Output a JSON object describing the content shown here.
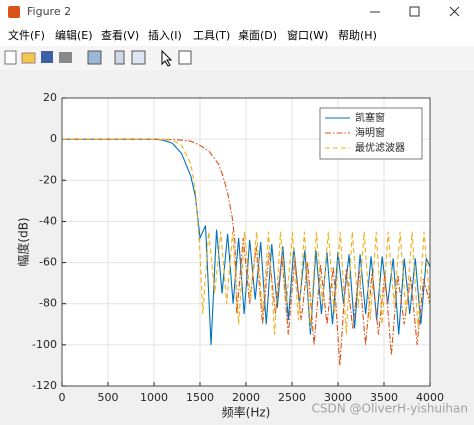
{
  "window": {
    "title": "Figure 2",
    "menu": [
      "文件(F)",
      "编辑(E)",
      "查看(V)",
      "插入(I)",
      "工具(T)",
      "桌面(D)",
      "窗口(W)",
      "帮助(H)"
    ]
  },
  "watermark": "CSDN @OliverH-yishuihan",
  "chart_data": {
    "type": "line",
    "xlabel": "频率(Hz)",
    "ylabel": "幅度(dB)",
    "xlim": [
      0,
      4000
    ],
    "xticks": [
      0,
      500,
      1000,
      1500,
      2000,
      2500,
      3000,
      3500,
      4000
    ],
    "ylim": [
      -120,
      20
    ],
    "yticks": [
      -120,
      -100,
      -80,
      -60,
      -40,
      -20,
      0,
      20
    ],
    "grid": true,
    "legend": "northeast",
    "series": [
      {
        "name": "凯塞窗",
        "color": "#0072bd",
        "linestyle": "-",
        "x": [
          0,
          500,
          1000,
          1100,
          1200,
          1300,
          1400,
          1450,
          1500,
          1560,
          1620,
          1680,
          1740,
          1800,
          1860,
          1920,
          1980,
          2040,
          2100,
          2160,
          2220,
          2280,
          2340,
          2400,
          2460,
          2520,
          2580,
          2640,
          2700,
          2760,
          2820,
          2880,
          2940,
          3000,
          3060,
          3120,
          3180,
          3240,
          3300,
          3360,
          3420,
          3480,
          3540,
          3600,
          3660,
          3720,
          3780,
          3840,
          3900,
          3960,
          4000
        ],
        "values": [
          0,
          0,
          0,
          -0.5,
          -2,
          -7,
          -18,
          -28,
          -48,
          -42,
          -100,
          -44,
          -75,
          -46,
          -80,
          -48,
          -85,
          -49,
          -78,
          -50,
          -90,
          -51,
          -82,
          -52,
          -88,
          -53,
          -80,
          -54,
          -95,
          -54,
          -85,
          -55,
          -90,
          -55,
          -80,
          -56,
          -92,
          -56,
          -85,
          -57,
          -88,
          -57,
          -80,
          -58,
          -95,
          -58,
          -85,
          -58,
          -90,
          -58,
          -62
        ]
      },
      {
        "name": "海明窗",
        "color": "#d95319",
        "linestyle": "-.",
        "x": [
          0,
          500,
          1000,
          1200,
          1300,
          1400,
          1500,
          1600,
          1700,
          1750,
          1800,
          1850,
          1880,
          1900,
          1970,
          2040,
          2110,
          2180,
          2250,
          2320,
          2390,
          2460,
          2530,
          2600,
          2670,
          2740,
          2810,
          2880,
          2950,
          3020,
          3090,
          3160,
          3230,
          3300,
          3370,
          3440,
          3510,
          3580,
          3650,
          3720,
          3790,
          3860,
          3930,
          4000
        ],
        "values": [
          0,
          0,
          0,
          -0.2,
          -0.5,
          -1,
          -3,
          -6,
          -12,
          -18,
          -26,
          -38,
          -50,
          -85,
          -48,
          -80,
          -52,
          -90,
          -55,
          -85,
          -57,
          -95,
          -58,
          -88,
          -60,
          -100,
          -61,
          -90,
          -62,
          -110,
          -63,
          -92,
          -64,
          -100,
          -65,
          -95,
          -65,
          -105,
          -66,
          -90,
          -67,
          -100,
          -68,
          -80
        ]
      },
      {
        "name": "最优滤波器",
        "color": "#edb120",
        "linestyle": "--",
        "x": [
          0,
          500,
          1000,
          1200,
          1300,
          1400,
          1450,
          1500,
          1530,
          1595,
          1660,
          1725,
          1790,
          1855,
          1920,
          1985,
          2050,
          2115,
          2180,
          2245,
          2310,
          2375,
          2440,
          2505,
          2570,
          2635,
          2700,
          2765,
          2830,
          2895,
          2960,
          3025,
          3090,
          3155,
          3220,
          3285,
          3350,
          3415,
          3480,
          3545,
          3610,
          3675,
          3740,
          3805,
          3870,
          3935,
          4000
        ],
        "values": [
          0,
          0,
          0,
          -0.5,
          -3,
          -12,
          -25,
          -55,
          -85,
          -45,
          -75,
          -45,
          -80,
          -45,
          -90,
          -45,
          -78,
          -45,
          -85,
          -45,
          -95,
          -45,
          -80,
          -45,
          -88,
          -45,
          -92,
          -45,
          -80,
          -45,
          -85,
          -45,
          -95,
          -45,
          -82,
          -45,
          -88,
          -45,
          -90,
          -45,
          -80,
          -45,
          -85,
          -45,
          -92,
          -45,
          -80
        ]
      }
    ]
  }
}
